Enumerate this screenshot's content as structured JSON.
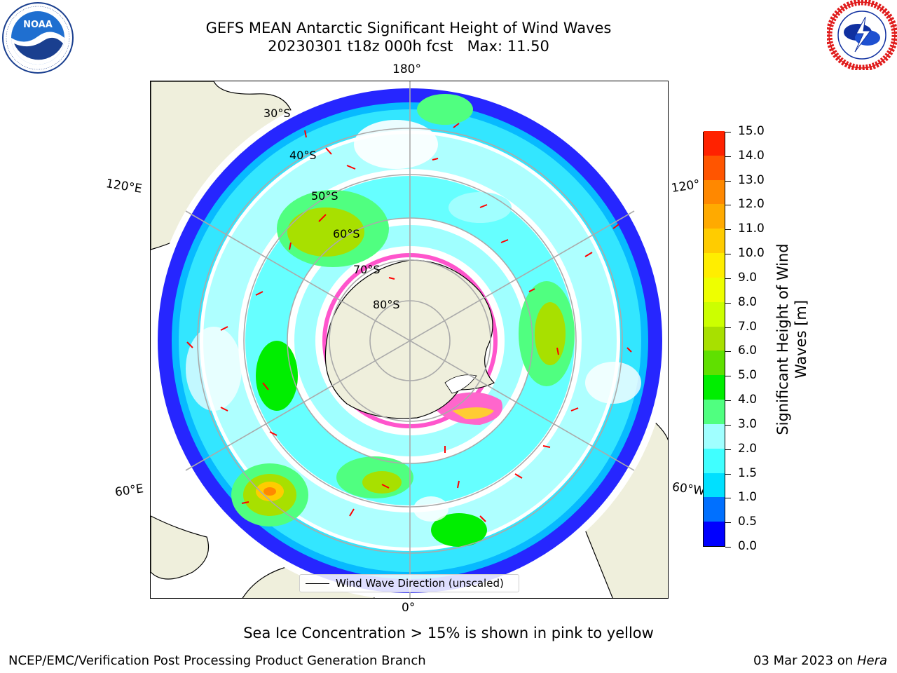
{
  "title": {
    "line1": "GEFS MEAN Antarctic Significant Height of Wind Waves",
    "line2": "20230301 t18z 000h fcst   Max: 11.50"
  },
  "logos": {
    "left": {
      "name": "noaa-logo",
      "text": "NOAA",
      "ring_text": "NATIONAL OCEANIC AND ATMOSPHERIC ADMINISTRATION · U.S. DEPARTMENT OF COMMERCE"
    },
    "right": {
      "name": "nws-logo",
      "ring_text": "NATIONAL WEATHER SERVICE"
    }
  },
  "map": {
    "projection": "south-polar-stereographic",
    "longitude_labels": [
      "180°",
      "120°E",
      "120°",
      "60°E",
      "60°W",
      "0°"
    ],
    "latitude_labels": [
      "30°S",
      "40°S",
      "50°S",
      "60°S",
      "70°S",
      "80°S"
    ],
    "legend": "Wind Wave Direction (unscaled)",
    "colors": {
      "land": "#efefdc",
      "ice_low": "#ff55cc",
      "ice_high": "#ffcc33",
      "arrow": "#ff0000",
      "grid": "#aaaaaa"
    }
  },
  "colorbar": {
    "label_line1": "Significant Height of Wind",
    "label_line2": "Waves [m]",
    "ticks": [
      "0.0",
      "0.5",
      "1.0",
      "1.5",
      "2.0",
      "3.0",
      "4.0",
      "5.0",
      "6.0",
      "7.0",
      "8.0",
      "9.0",
      "10.0",
      "11.0",
      "12.0",
      "13.0",
      "14.0",
      "15.0"
    ],
    "colors": [
      "#0000ff",
      "#0070ff",
      "#00e0ff",
      "#40ffff",
      "#a0ffff",
      "#50ff80",
      "#00ee00",
      "#60e000",
      "#a8e000",
      "#ccff00",
      "#eeff00",
      "#ffee00",
      "#ffcc00",
      "#ffaa00",
      "#ff8800",
      "#ff5500",
      "#ff2200"
    ]
  },
  "notes": {
    "sea_ice": "Sea Ice Concentration > 15% is shown in pink to yellow",
    "producer": "NCEP/EMC/Verification Post Processing Product Generation Branch",
    "date": "03 Mar 2023 on",
    "machine": "Hera"
  }
}
